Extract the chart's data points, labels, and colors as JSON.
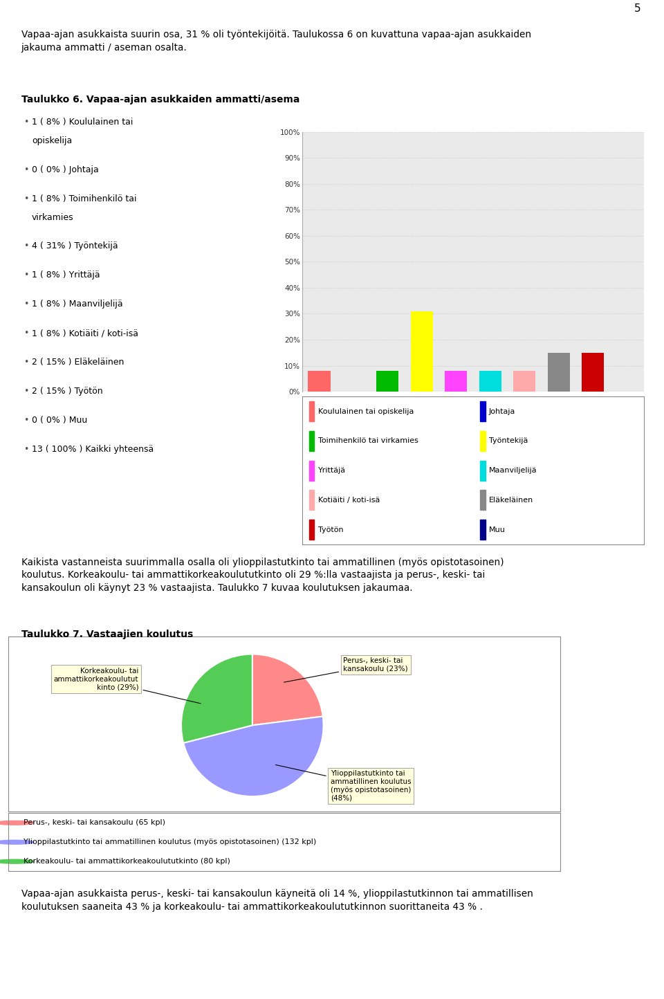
{
  "page_number": "5",
  "page_bg": "#ffffff",
  "text1": "Vapaa-ajan asukkaista suurin osa, 31 % oli työntekijöitä. Taulukossa 6 on kuvattuna vapaa-ajan asukkaiden\njakauma ammatti / aseman osalta.",
  "table6_title": "Taulukko 6. Vapaa-ajan asukkaiden ammatti/asema",
  "bullet_items": [
    [
      "1 ( 8% ) Koululainen tai",
      "opiskelija"
    ],
    [
      "0 ( 0% ) Johtaja"
    ],
    [
      "1 ( 8% ) Toimihenkilö tai",
      "virkamies"
    ],
    [
      "4 ( 31% ) Työntekijä"
    ],
    [
      "1 ( 8% ) Yrittäjä"
    ],
    [
      "1 ( 8% ) Maanviljelijä"
    ],
    [
      "1 ( 8% ) Kotiäiti / koti-isä"
    ],
    [
      "2 ( 15% ) Eläkeläinen"
    ],
    [
      "2 ( 15% ) Työtön"
    ],
    [
      "0 ( 0% ) Muu"
    ],
    [
      "13 ( 100% ) Kaikki yhteensä"
    ]
  ],
  "bar_categories": [
    "Koululainen tai opiskelija",
    "Johtaja",
    "Toimihenkilö tai virkamies",
    "Työntekijä",
    "Yrittäjä",
    "Maanviljelijä",
    "Kotiäiti / koti-isä",
    "Eläkeläinen",
    "Työtön",
    "Muu"
  ],
  "bar_values": [
    8,
    0,
    8,
    31,
    8,
    8,
    8,
    15,
    15,
    0
  ],
  "bar_colors": [
    "#ff6666",
    "#0000cc",
    "#00bb00",
    "#ffff00",
    "#ff44ff",
    "#00dddd",
    "#ffaaaa",
    "#888888",
    "#cc0000",
    "#000088"
  ],
  "bar_ylim": [
    0,
    100
  ],
  "bar_yticks": [
    0,
    10,
    20,
    30,
    40,
    50,
    60,
    70,
    80,
    90,
    100
  ],
  "bar_ytick_labels": [
    "0%",
    "10%",
    "20%",
    "30%",
    "40%",
    "50%",
    "60%",
    "70%",
    "80%",
    "90%",
    "100%"
  ],
  "bar_bg": "#eaeaea",
  "legend_items": [
    {
      "label": "Koululainen tai opiskelija",
      "color": "#ff6666"
    },
    {
      "label": "Johtaja",
      "color": "#0000cc"
    },
    {
      "label": "Toimihenkilö tai virkamies",
      "color": "#00bb00"
    },
    {
      "label": "Työntekijä",
      "color": "#ffff00"
    },
    {
      "label": "Yrittäjä",
      "color": "#ff44ff"
    },
    {
      "label": "Maanviljelijä",
      "color": "#00dddd"
    },
    {
      "label": "Kotiäiti / koti-isä",
      "color": "#ffaaaa"
    },
    {
      "label": "Eläkeläinen",
      "color": "#888888"
    },
    {
      "label": "Työtön",
      "color": "#cc0000"
    },
    {
      "label": "Muu",
      "color": "#000088"
    }
  ],
  "text2": "Kaikista vastanneista suurimmalla osalla oli ylioppilastutkinto tai ammatillinen (myös opistotasoinen)\nkoulutus. Korkeakoulu- tai ammattikorkeakoulututkinto oli 29 %:lla vastaajista ja perus-, keski- tai\nkansakoulun oli käynyt 23 % vastaajista. Taulukko 7 kuvaa koulutuksen jakaumaa.",
  "table7_title": "Taulukko 7. Vastaajien koulutus",
  "pie_slices": [
    {
      "label": "Perus-, keski- tai\nkansakoulu (23%)",
      "ann_label": "Perus-, keski- tai\nkansakoulu (23%)",
      "value": 23,
      "color": "#ff8888",
      "kpl": 65
    },
    {
      "label": "Ylioppilastutkinto tai\nammatillinen koulutus\n(myös opistotasoinen)\n(48%)",
      "ann_label": "Ylioppilastutkinto tai\nammatillinen koulutus\n(myös opistotasoinen)\n(48%)",
      "value": 48,
      "color": "#9999ff",
      "kpl": 132
    },
    {
      "label": "Korkeakoulu- tai\nammattikorkeakoulutut\nkinto (29%)",
      "ann_label": "Korkeakoulu- tai\nammattikorkeakoulutut\nkinto (29%)",
      "value": 29,
      "color": "#55cc55",
      "kpl": 80
    }
  ],
  "pie_legend_items": [
    {
      "label": "Perus-, keski- tai kansakoulu (65 kpl)",
      "color": "#ff8888"
    },
    {
      "label": "Ylioppilastutkinto tai ammatillinen koulutus (myös opistotasoinen) (132 kpl)",
      "color": "#9999ff"
    },
    {
      "label": "Korkeakoulu- tai ammattikorkeakoulututkinto (80 kpl)",
      "color": "#55cc55"
    }
  ],
  "text3": "Vapaa-ajan asukkaista perus-, keski- tai kansakoulun käyneitä oli 14 %, ylioppilastutkinnon tai ammatillisen\nkoulutuksen saaneita 43 % ja korkeakoulu- tai ammattikorkeakoulututkinnon suorittaneita 43 % ."
}
